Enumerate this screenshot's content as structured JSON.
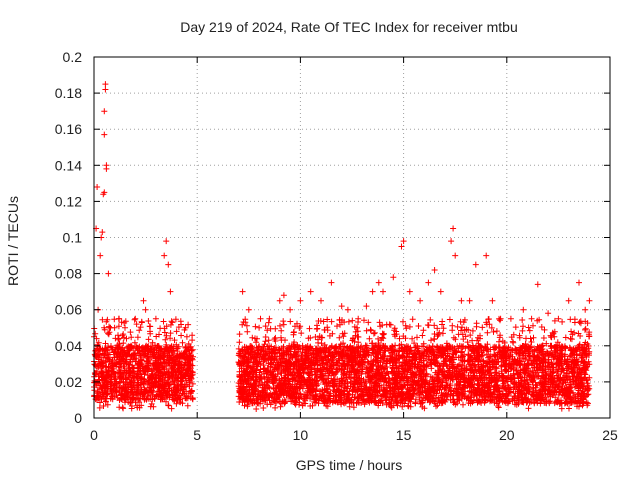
{
  "chart_data": {
    "type": "scatter",
    "title": "Day 219 of 2024, Rate Of TEC Index for receiver mtbu",
    "xlabel": "GPS time / hours",
    "ylabel": "ROTI / TECUs",
    "xlim": [
      0,
      25
    ],
    "ylim": [
      0,
      0.2
    ],
    "xticks": [
      0,
      5,
      10,
      15,
      20,
      25
    ],
    "yticks": [
      0,
      0.02,
      0.04,
      0.06,
      0.08,
      0.1,
      0.12,
      0.14,
      0.16,
      0.18,
      0.2
    ],
    "xtick_labels": [
      "0",
      "5",
      "10",
      "15",
      "20",
      "25"
    ],
    "ytick_labels": [
      "0",
      "0.02",
      "0.04",
      "0.06",
      "0.08",
      "0.1",
      "0.12",
      "0.14",
      "0.16",
      "0.18",
      "0.2"
    ],
    "grid": true,
    "marker": "plus",
    "color": "#ff0000",
    "data_gap_hours": [
      4.8,
      7.0
    ],
    "series": [
      {
        "name": "ROTI",
        "x": [
          0.0,
          0.1,
          0.15,
          0.2,
          0.3,
          0.35,
          0.4,
          0.45,
          0.5,
          0.5,
          0.5,
          0.55,
          0.55,
          0.6,
          0.6,
          0.7,
          0.8,
          1.0,
          1.2,
          1.5,
          2.0,
          2.4,
          2.5,
          3.0,
          3.4,
          3.5,
          3.6,
          3.7,
          4.0,
          4.5,
          7.2,
          7.5,
          8.0,
          8.5,
          9.0,
          9.2,
          9.5,
          10.0,
          10.5,
          11.0,
          11.5,
          12.0,
          12.3,
          12.8,
          13.2,
          13.5,
          13.8,
          14.0,
          14.5,
          14.9,
          15.0,
          15.3,
          15.8,
          16.2,
          16.5,
          16.8,
          17.3,
          17.4,
          17.5,
          17.8,
          18.2,
          18.5,
          19.0,
          19.3,
          19.7,
          20.2,
          20.8,
          21.2,
          21.5,
          22.0,
          22.5,
          23.0,
          23.5,
          23.8,
          24.0
        ],
        "y": [
          0.045,
          0.105,
          0.128,
          0.06,
          0.09,
          0.1,
          0.103,
          0.124,
          0.125,
          0.157,
          0.17,
          0.182,
          0.185,
          0.138,
          0.14,
          0.08,
          0.05,
          0.05,
          0.055,
          0.05,
          0.055,
          0.065,
          0.06,
          0.055,
          0.09,
          0.098,
          0.085,
          0.07,
          0.048,
          0.045,
          0.07,
          0.06,
          0.05,
          0.055,
          0.065,
          0.068,
          0.06,
          0.065,
          0.07,
          0.065,
          0.075,
          0.062,
          0.06,
          0.055,
          0.062,
          0.07,
          0.075,
          0.07,
          0.078,
          0.095,
          0.098,
          0.07,
          0.065,
          0.075,
          0.082,
          0.07,
          0.098,
          0.105,
          0.09,
          0.065,
          0.065,
          0.085,
          0.09,
          0.065,
          0.055,
          0.055,
          0.06,
          0.055,
          0.074,
          0.058,
          0.055,
          0.065,
          0.075,
          0.06,
          0.065
        ]
      }
    ],
    "density_bands": [
      {
        "x_range": [
          0,
          4.8
        ],
        "y_floor": 0.005,
        "y_core": [
          0.01,
          0.04
        ],
        "y_spread": 0.05
      },
      {
        "x_range": [
          7.0,
          24.0
        ],
        "y_floor": 0.005,
        "y_core": [
          0.008,
          0.04
        ],
        "y_spread": 0.05
      }
    ]
  }
}
